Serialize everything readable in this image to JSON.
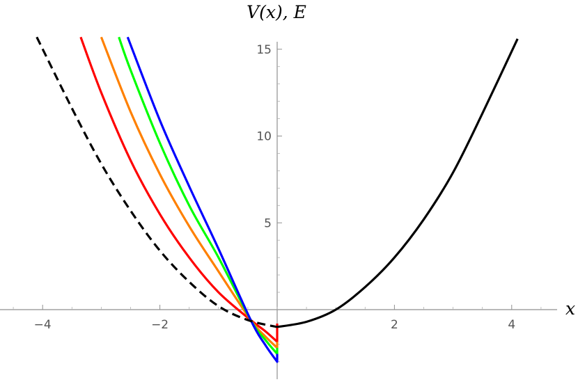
{
  "chart_data": {
    "type": "line",
    "title": "",
    "xlabel": "x",
    "ylabel": "V(x), E",
    "xlim": [
      -4.7,
      4.7
    ],
    "ylim": [
      -3.9,
      15.7
    ],
    "x_ticks": [
      -4,
      -2,
      2,
      4
    ],
    "y_ticks": [
      5,
      10,
      15
    ],
    "x_tick_labels": [
      "−4",
      "−2",
      "2",
      "4"
    ],
    "y_tick_labels": [
      "5",
      "10",
      "15"
    ],
    "grid": false,
    "legend": "none",
    "series": [
      {
        "color": "#000000",
        "style": "dashed",
        "x": [
          -4.1,
          -3.5,
          -3.0,
          -2.5,
          -2.0,
          -1.5,
          -1.0,
          -0.5,
          0.0
        ],
        "y": [
          15.7,
          11.6,
          8.4,
          5.7,
          3.4,
          1.6,
          0.2,
          -0.6,
          -1.0
        ]
      },
      {
        "color": "#000000",
        "style": "solid",
        "x": [
          0.0,
          0.5,
          1.0,
          1.5,
          2.0,
          2.5,
          3.0,
          3.5,
          4.1
        ],
        "y": [
          -1.0,
          -0.7,
          0.0,
          1.3,
          3.0,
          5.2,
          7.9,
          11.3,
          15.6
        ]
      },
      {
        "color": "#ff0000",
        "style": "solid",
        "x": [
          -3.35,
          -3.0,
          -2.5,
          -2.0,
          -1.5,
          -1.0,
          -0.45,
          -0.2,
          0.0,
          0.0
        ],
        "y": [
          15.7,
          12.5,
          8.6,
          5.5,
          3.0,
          1.0,
          -0.6,
          -1.25,
          -1.85,
          -0.8
        ]
      },
      {
        "color": "#ff8000",
        "style": "solid",
        "x": [
          -3.0,
          -2.5,
          -2.0,
          -1.5,
          -1.0,
          -0.45,
          -0.2,
          0.0,
          0.0
        ],
        "y": [
          15.7,
          11.4,
          7.8,
          4.8,
          2.2,
          -0.6,
          -1.55,
          -2.2,
          -1.85
        ]
      },
      {
        "color": "#00ff00",
        "style": "solid",
        "x": [
          -2.7,
          -2.5,
          -2.0,
          -1.5,
          -1.0,
          -0.45,
          -0.2,
          0.0,
          0.0
        ],
        "y": [
          15.7,
          13.8,
          9.6,
          6.0,
          3.0,
          -0.6,
          -1.75,
          -2.55,
          -2.2
        ]
      },
      {
        "color": "#0000ff",
        "style": "solid",
        "x": [
          -2.55,
          -2.0,
          -1.5,
          -1.0,
          -0.45,
          -0.2,
          0.0,
          0.0
        ],
        "y": [
          15.7,
          10.9,
          7.1,
          3.5,
          -0.6,
          -2.05,
          -3.0,
          -2.55
        ]
      }
    ]
  }
}
